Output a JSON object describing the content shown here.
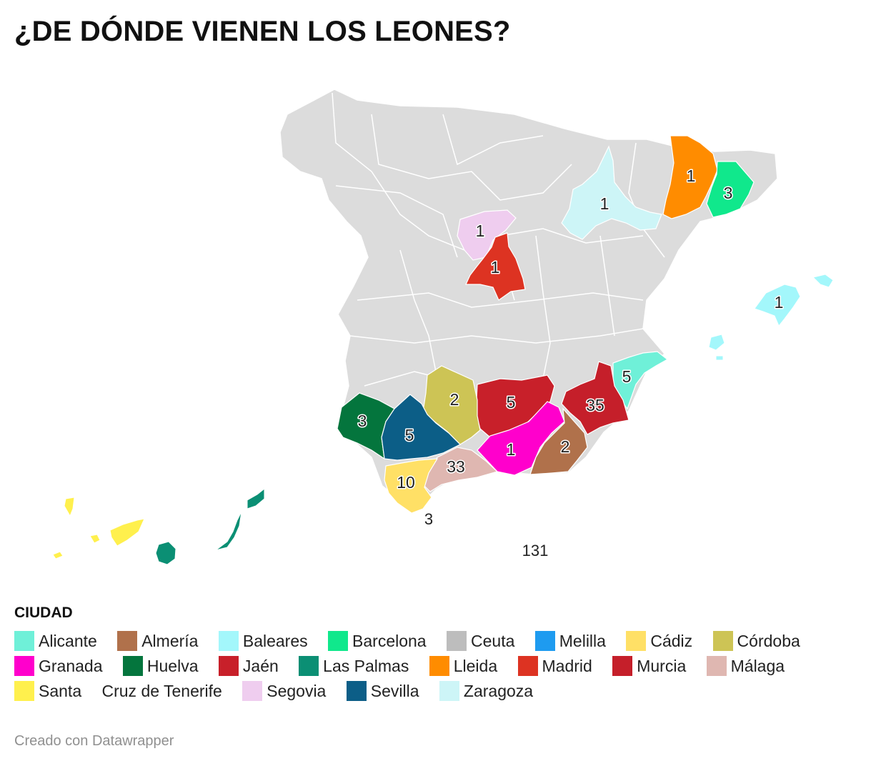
{
  "title": "¿DE DÓNDE VIENEN LOS LEONES?",
  "legend": {
    "title": "CIUDAD",
    "items": [
      {
        "label": "Alicante",
        "color": "#6ff0d8"
      },
      {
        "label": "Almería",
        "color": "#b0714b"
      },
      {
        "label": "Baleares",
        "color": "#a3f7fb"
      },
      {
        "label": "Barcelona",
        "color": "#10e88c"
      },
      {
        "label": "Ceuta",
        "color": "#bdbdbd"
      },
      {
        "label": "Melilla",
        "color": "#1e9bf0"
      },
      {
        "label": "Cádiz",
        "color": "#ffe066"
      },
      {
        "label": "Córdoba",
        "color": "#cdc455"
      },
      {
        "label": "Granada",
        "color": "#ff00cc"
      },
      {
        "label": "Huelva",
        "color": "#04753d"
      },
      {
        "label": "Jaén",
        "color": "#c8202a"
      },
      {
        "label": "Las Palmas",
        "color": "#0b8f74"
      },
      {
        "label": "Lleida",
        "color": "#ff8c00"
      },
      {
        "label": "Madrid",
        "color": "#dd3322"
      },
      {
        "label": "Murcia",
        "color": "#c51f2a"
      },
      {
        "label": "Málaga",
        "color": "#dfb7b1"
      },
      {
        "label": "Santa",
        "color": "#fff04d"
      },
      {
        "label": "Cruz de Tenerife",
        "color": ""
      },
      {
        "label": "Segovia",
        "color": "#efcdef"
      },
      {
        "label": "Sevilla",
        "color": "#0c5e87"
      },
      {
        "label": "Zaragoza",
        "color": "#cdf5f7"
      }
    ]
  },
  "map": {
    "base_color": "#dcdcdc",
    "regions": [
      {
        "id": "lleida",
        "name": "Lleida",
        "value": "1",
        "color": "#ff8c00"
      },
      {
        "id": "barcelona",
        "name": "Barcelona",
        "value": "3",
        "color": "#10e88c"
      },
      {
        "id": "zaragoza",
        "name": "Zaragoza",
        "value": "1",
        "color": "#cdf5f7"
      },
      {
        "id": "segovia",
        "name": "Segovia",
        "value": "1",
        "color": "#efcdef"
      },
      {
        "id": "madrid",
        "name": "Madrid",
        "value": "1",
        "color": "#dd3322"
      },
      {
        "id": "baleares",
        "name": "Baleares",
        "value": "1",
        "color": "#a3f7fb"
      },
      {
        "id": "alicante",
        "name": "Alicante",
        "value": "5",
        "color": "#6ff0d8"
      },
      {
        "id": "murcia",
        "name": "Murcia",
        "value": "35",
        "color": "#c51f2a"
      },
      {
        "id": "jaen",
        "name": "Jaén",
        "value": "5",
        "color": "#c8202a"
      },
      {
        "id": "cordoba",
        "name": "Córdoba",
        "value": "2",
        "color": "#cdc455"
      },
      {
        "id": "huelva",
        "name": "Huelva",
        "value": "3",
        "color": "#04753d"
      },
      {
        "id": "sevilla",
        "name": "Sevilla",
        "value": "5",
        "color": "#0c5e87"
      },
      {
        "id": "granada",
        "name": "Granada",
        "value": "1",
        "color": "#ff00cc"
      },
      {
        "id": "almeria",
        "name": "Almería",
        "value": "2",
        "color": "#b0714b"
      },
      {
        "id": "malaga",
        "name": "Málaga",
        "value": "33",
        "color": "#dfb7b1"
      },
      {
        "id": "cadiz",
        "name": "Cádiz",
        "value": "10",
        "color": "#ffe066"
      },
      {
        "id": "ceuta",
        "name": "Ceuta",
        "value": "3",
        "color": "#bdbdbd"
      },
      {
        "id": "melilla",
        "name": "Melilla",
        "value": "131",
        "color": "#1e9bf0"
      },
      {
        "id": "laspalmas",
        "name": "Las Palmas",
        "value": "",
        "color": "#0b8f74"
      },
      {
        "id": "tenerife",
        "name": "Santa Cruz de Tenerife",
        "value": "",
        "color": "#fff04d"
      }
    ]
  },
  "footer": "Creado con Datawrapper"
}
